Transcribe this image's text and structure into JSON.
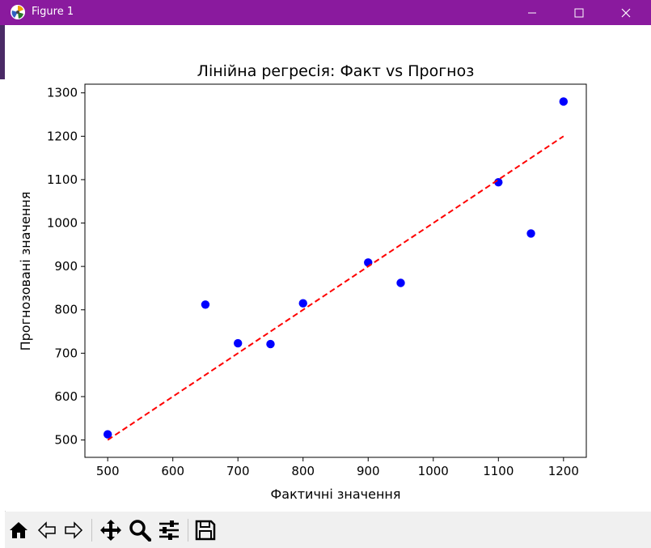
{
  "window": {
    "title": "Figure 1",
    "titlebar_color": "#8a1a9e",
    "controls": [
      "minimize-icon",
      "maximize-icon",
      "close-icon"
    ]
  },
  "toolbar": {
    "buttons": [
      "home-icon",
      "back-icon",
      "forward-icon",
      "pan-icon",
      "zoom-icon",
      "configure-subplots-icon",
      "save-icon"
    ]
  },
  "chart_data": {
    "type": "scatter",
    "title": "Лінійна регресія: Факт vs Прогноз",
    "xlabel": "Фактичні значення",
    "ylabel": "Прогнозовані значення",
    "xlim": [
      465,
      1235
    ],
    "ylim": [
      460,
      1320
    ],
    "xticks": [
      500,
      600,
      700,
      800,
      900,
      1000,
      1100,
      1200
    ],
    "yticks": [
      500,
      600,
      700,
      800,
      900,
      1000,
      1100,
      1200,
      1300
    ],
    "grid": false,
    "points": {
      "color": "#0000ff",
      "x": [
        500,
        650,
        700,
        750,
        800,
        900,
        950,
        1100,
        1150,
        1200
      ],
      "y": [
        513,
        812,
        723,
        721,
        815,
        909,
        862,
        1094,
        976,
        1280
      ]
    },
    "line": {
      "style": "dashed",
      "color": "#ff0000",
      "x": [
        500,
        1200
      ],
      "y": [
        500,
        1200
      ]
    }
  }
}
